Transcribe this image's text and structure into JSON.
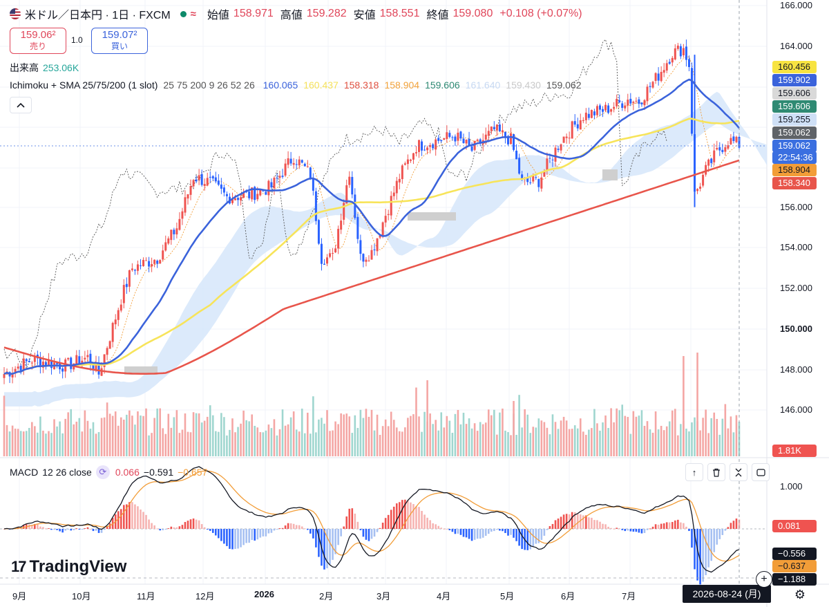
{
  "header": {
    "title": "米ドル／日本円 · 1日 · FXCM",
    "open_label": "始値",
    "open": "158.971",
    "high_label": "高値",
    "high": "159.282",
    "low_label": "安値",
    "low": "158.551",
    "close_label": "終値",
    "close": "159.080",
    "change": "+0.108 (+0.07%)",
    "status_dot_color": "#0d8a6a",
    "wave_icon": "≈"
  },
  "trade": {
    "sell_price": "159.06²",
    "sell_label": "売り",
    "spread": "1.0",
    "buy_price": "159.07²",
    "buy_label": "買い"
  },
  "volume": {
    "label": "出来高",
    "value": "253.06K"
  },
  "indicator": {
    "name": "Ichimoku + SMA 25/75/200 (1 slot)",
    "params": "25 75 200 9 26 52 26",
    "values": [
      {
        "v": "160.065",
        "color": "#3b63db"
      },
      {
        "v": "160.437",
        "color": "#f5e15a"
      },
      {
        "v": "158.318",
        "color": "#e0503f"
      },
      {
        "v": "158.904",
        "color": "#f2a23a"
      },
      {
        "v": "159.606",
        "color": "#2f8a73"
      },
      {
        "v": "161.640",
        "color": "#c7d9f2"
      },
      {
        "v": "159.430",
        "color": "#c9c9c9"
      },
      {
        "v": "159.062",
        "color": "#555555"
      }
    ]
  },
  "macd": {
    "name": "MACD",
    "params": "12 26 close",
    "hist": "0.066",
    "macd": "−0.591",
    "signal": "−0.657"
  },
  "price_axis": [
    "166.000",
    "164.000",
    "156.000",
    "154.000",
    "152.000",
    "150.000",
    "148.000",
    "146.000"
  ],
  "price_axis_zero": "0",
  "price_labels": [
    {
      "text": "160.456",
      "bg": "#f7e341",
      "fg": "#131722"
    },
    {
      "text": "159.902",
      "bg": "#3b63db",
      "fg": "#ffffff"
    },
    {
      "text": "159.606",
      "bg": "#d9d9d9",
      "fg": "#131722"
    },
    {
      "text": "159.606",
      "bg": "#2f8a73",
      "fg": "#ffffff"
    },
    {
      "text": "159.255",
      "bg": "#cfe0f6",
      "fg": "#131722"
    },
    {
      "text": "159.062",
      "bg": "#5f6368",
      "fg": "#ffffff"
    },
    {
      "text": "159.062",
      "bg": "#3b6fe0",
      "fg": "#ffffff"
    },
    {
      "text": "22:54:36",
      "bg": "#3b6fe0",
      "fg": "#ffffff"
    },
    {
      "text": "158.904",
      "bg": "#f29d38",
      "fg": "#131722"
    },
    {
      "text": "158.340",
      "bg": "#e8554b",
      "fg": "#ffffff"
    }
  ],
  "volume_label": "1.81K",
  "macd_axis": [
    "1.000"
  ],
  "macd_labels": [
    {
      "text": "0.081",
      "bg": "#ef5350",
      "fg": "#ffffff"
    },
    {
      "text": "−0.556",
      "bg": "#131722",
      "fg": "#ffffff"
    },
    {
      "text": "−0.637",
      "bg": "#f29d38",
      "fg": "#131722"
    },
    {
      "text": "−1.188",
      "bg": "#131722",
      "fg": "#ffffff"
    }
  ],
  "x_axis": [
    "9月",
    "10月",
    "11月",
    "12月",
    "2026",
    "2月",
    "3月",
    "4月",
    "5月",
    "6月",
    "7月"
  ],
  "crosshair_date": "2026-08-24 (月)",
  "logo": {
    "mark": "17",
    "text": "TradingView"
  },
  "colors": {
    "up": "#ef5350",
    "down": "#2962ff",
    "sma25": "#3b63db",
    "sma75": "#f7e45a",
    "sma200": "#e8554b",
    "cloud": "#d6e6fa",
    "cloud_neg": "#cfcfcf",
    "vol_up": "#f4a6a4",
    "vol_down": "#9fd6cf",
    "macd_line": "#131722",
    "signal_line": "#f29d38"
  },
  "icons": {
    "collapse": "chevron-up-icon",
    "macd_settings": "refresh-icon",
    "move_up": "arrow-up-icon",
    "delete": "trash-icon",
    "collapse_pane": "collapse-icon",
    "maximize": "maximize-icon",
    "add": "plus-circle-icon",
    "settings": "gear-icon"
  }
}
